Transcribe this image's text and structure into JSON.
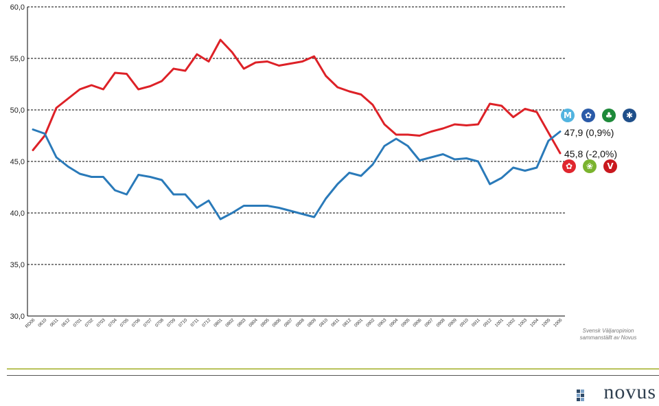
{
  "chart_data": {
    "type": "line",
    "categories": [
      "RD06",
      "0610",
      "0611",
      "0612",
      "0701",
      "0702",
      "0703",
      "0704",
      "0705",
      "0706",
      "0707",
      "0708",
      "0709",
      "0710",
      "0711",
      "0712",
      "0801",
      "0802",
      "0803",
      "0804",
      "0805",
      "0806",
      "0807",
      "0808",
      "0809",
      "0810",
      "0811",
      "0812",
      "0901",
      "0902",
      "0903",
      "0904",
      "0905",
      "0906",
      "0907",
      "0908",
      "0909",
      "0910",
      "0911",
      "0912",
      "1001",
      "1002",
      "1003",
      "1004",
      "1005",
      "1006"
    ],
    "series": [
      {
        "color": "#dd2127",
        "values": [
          46.1,
          47.5,
          50.2,
          51.1,
          52.0,
          52.4,
          52.0,
          53.6,
          53.5,
          52.0,
          52.3,
          52.8,
          54.0,
          53.8,
          55.4,
          54.7,
          56.8,
          55.6,
          54.0,
          54.6,
          54.7,
          54.3,
          54.5,
          54.7,
          55.2,
          53.3,
          52.2,
          51.8,
          51.5,
          50.5,
          48.6,
          47.6,
          47.6,
          47.5,
          47.9,
          48.2,
          48.6,
          48.5,
          48.6,
          50.6,
          50.4,
          49.3,
          50.1,
          49.8,
          47.8,
          45.8
        ]
      },
      {
        "color": "#2a7ab9",
        "values": [
          48.1,
          47.7,
          45.4,
          44.5,
          43.8,
          43.5,
          43.5,
          42.2,
          41.8,
          43.7,
          43.5,
          43.2,
          41.8,
          41.8,
          40.5,
          41.2,
          39.4,
          40.0,
          40.7,
          40.7,
          40.7,
          40.5,
          40.2,
          39.9,
          39.6,
          41.4,
          42.8,
          43.9,
          43.6,
          44.7,
          46.5,
          47.2,
          46.5,
          45.1,
          45.4,
          45.7,
          45.2,
          45.3,
          45.0,
          42.8,
          43.4,
          44.4,
          44.1,
          44.4,
          47.0,
          47.9
        ]
      }
    ],
    "yticks": [
      "30,0",
      "35,0",
      "40,0",
      "45,0",
      "50,0",
      "55,0",
      "60,0"
    ],
    "ylim": [
      30,
      60
    ],
    "grid": true,
    "end_labels": {
      "blue": "47,9 (0,9%)",
      "red": "45,8 (-2,0%)"
    },
    "source_lines": [
      "Svensk Väljaropinion",
      "sammanställt av Novus"
    ]
  },
  "logo": {
    "text": "novus"
  },
  "party_icons": {
    "top": [
      {
        "name": "moderaterna-icon",
        "color": "#52b4e0",
        "glyph": "M"
      },
      {
        "name": "folkpartiet-icon",
        "color": "#2a5aa8",
        "glyph": "✿"
      },
      {
        "name": "centerpartiet-icon",
        "color": "#1e8a3a",
        "glyph": "♣"
      },
      {
        "name": "kristdemokraterna-icon",
        "color": "#1f4f8a",
        "glyph": "✱"
      }
    ],
    "bottom": [
      {
        "name": "socialdemokraterna-icon",
        "color": "#e0262e",
        "glyph": "✿"
      },
      {
        "name": "miljopartiet-icon",
        "color": "#7ab32e",
        "glyph": "❀"
      },
      {
        "name": "vansterpartiet-icon",
        "color": "#c9181e",
        "glyph": "V"
      }
    ]
  }
}
